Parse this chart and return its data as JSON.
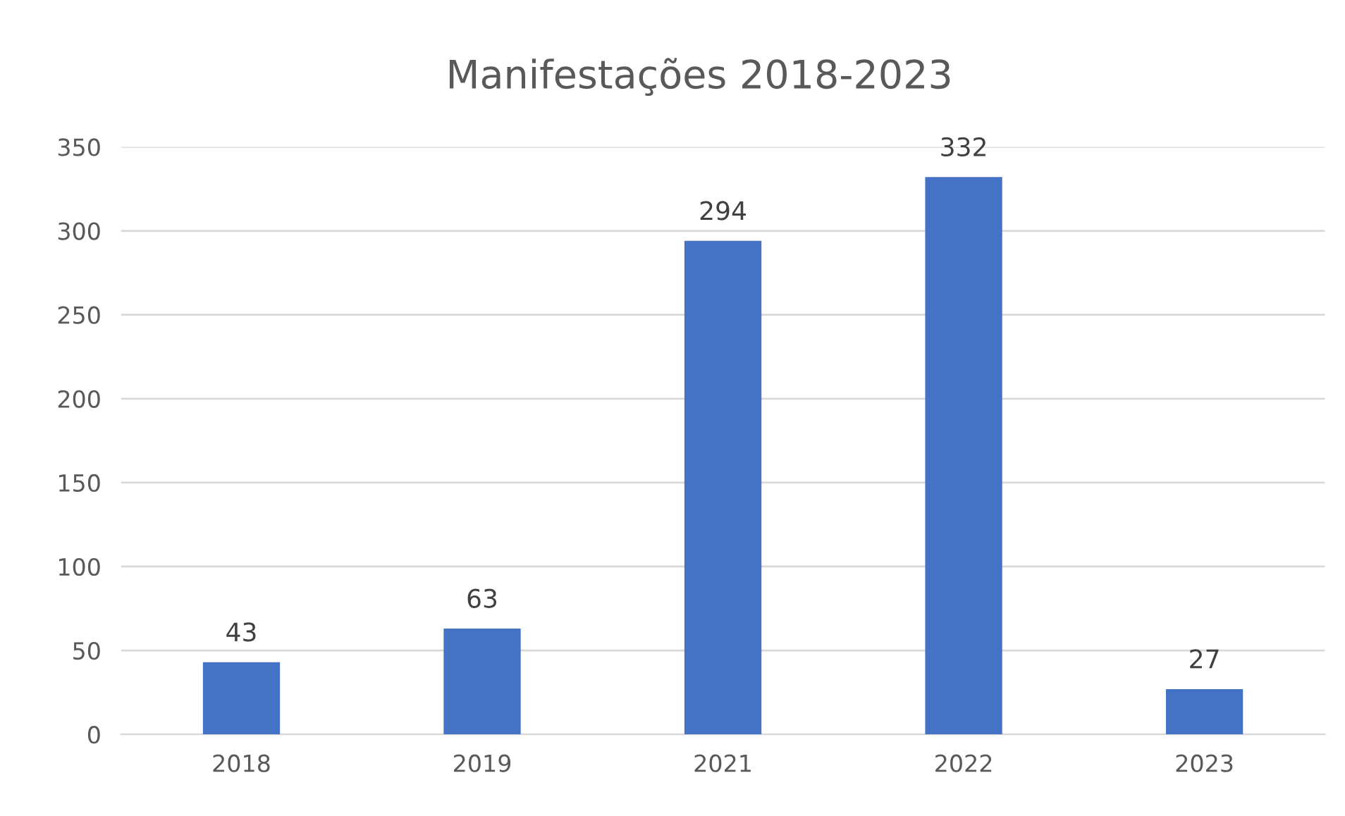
{
  "chart_data": {
    "type": "bar",
    "title": "Manifestações 2018-2023",
    "categories": [
      "2018",
      "2019",
      "2021",
      "2022",
      "2023"
    ],
    "values": [
      43,
      63,
      294,
      332,
      27
    ],
    "color": "#4472c4",
    "ylim": [
      0,
      350
    ],
    "yticks": [
      0,
      50,
      100,
      150,
      200,
      250,
      300,
      350
    ],
    "grid": "y",
    "data_labels": true
  }
}
